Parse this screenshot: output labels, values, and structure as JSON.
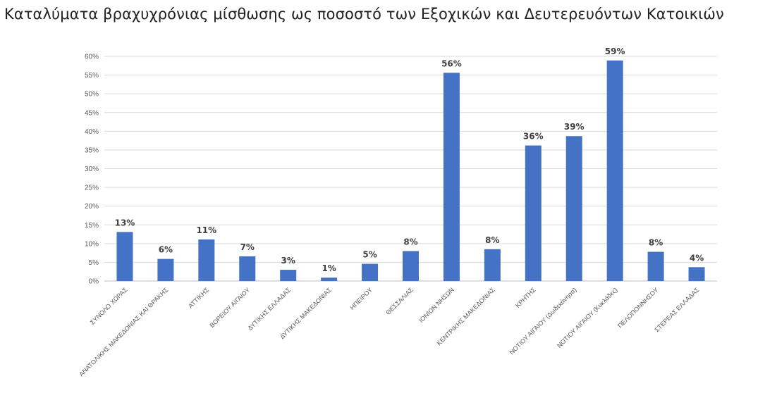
{
  "title": "Καταλύματα βραχυχρόνιας μίσθωσης ως ποσοστό των Εξοχικών και Δευτερευόντων Κατοικιών",
  "chart_data": {
    "type": "bar",
    "title": "Καταλύματα βραχυχρόνιας μίσθωσης ως ποσοστό των Εξοχικών και Δευτερευόντων Κατοικιών",
    "xlabel": "",
    "ylabel": "",
    "ylim": [
      0,
      60
    ],
    "yticks": [
      "0%",
      "5%",
      "10%",
      "15%",
      "20%",
      "25%",
      "30%",
      "35%",
      "40%",
      "45%",
      "50%",
      "55%",
      "60%"
    ],
    "grid": true,
    "bar_color": "#4472C4",
    "categories": [
      "ΣΥΝΟΛΟ ΧΩΡΑΣ",
      "ΑΝΑΤΟΛΙΚΗΣ ΜΑΚΕΔΟΝΙΑΣ ΚΑΙ ΘΡΑΚΗΣ",
      "ΑΤΤΙΚΗΣ",
      "ΒΟΡΕΙΟΥ ΑΙΓΑΙΟΥ",
      "ΔΥΤΙΚΗΣ ΕΛΛΑΔΑΣ",
      "ΔΥΤΙΚΗΣ ΜΑΚΕΔΟΝΙΑΣ",
      "ΗΠΕΙΡΟΥ",
      "ΘΕΣΣΑΛΙΑΣ",
      "ΙΟΝΙΩΝ ΝΗΣΩΝ",
      "ΚΕΝΤΡΙΚΗΣ ΜΑΚΕΔΟΝΙΑΣ",
      "ΚΡΗΤΗΣ",
      "ΝΟΤΙΟΥ ΑΙΓΑΙΟΥ (Δωδεκάνησα)",
      "ΝΟΤΙΟΥ ΑΙΓΑΙΟΥ (Κυκλάδες)",
      "ΠΕΛΟΠΟΝΝΗΣΟΥ",
      "ΣΤΕΡΕΑΣ ΕΛΛΑΔΑΣ"
    ],
    "values": [
      13.1,
      5.9,
      11.1,
      6.6,
      3.0,
      0.9,
      4.6,
      8.0,
      55.6,
      8.5,
      36.2,
      38.7,
      58.9,
      7.8,
      3.7
    ],
    "data_labels": [
      "13%",
      "6%",
      "11%",
      "7%",
      "3%",
      "1%",
      "5%",
      "8%",
      "56%",
      "8%",
      "36%",
      "39%",
      "59%",
      "8%",
      "4%"
    ]
  }
}
